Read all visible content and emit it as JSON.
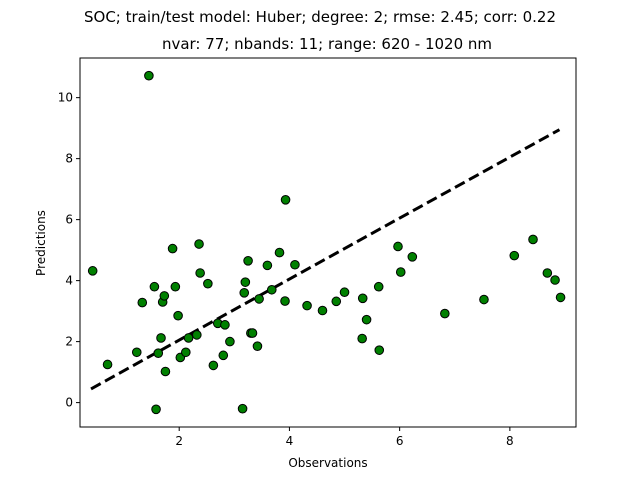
{
  "chart_data": {
    "type": "scatter",
    "title": "SOC; train/test model: Huber; degree: 2; rmse: 2.45; corr: 0.22",
    "subtitle": "nvar: 77; nbands: 11; range: 620 - 1020 nm",
    "xlabel": "Observations",
    "ylabel": "Predictions",
    "xlim": [
      0.2,
      9.2
    ],
    "ylim": [
      -0.8,
      11.3
    ],
    "xticks": [
      2,
      4,
      6,
      8
    ],
    "yticks": [
      0,
      2,
      4,
      6,
      8,
      10
    ],
    "grid": false,
    "legend": "none",
    "marker_color": "#008000",
    "marker_edge": "#000000",
    "fit_line": {
      "x": [
        0.4,
        8.9
      ],
      "y": [
        0.45,
        8.95
      ],
      "style": "dashed",
      "color": "#000000"
    },
    "points": [
      [
        0.43,
        4.32
      ],
      [
        0.7,
        1.25
      ],
      [
        1.23,
        1.65
      ],
      [
        1.33,
        3.28
      ],
      [
        1.45,
        10.72
      ],
      [
        1.55,
        3.8
      ],
      [
        1.58,
        -0.22
      ],
      [
        1.62,
        1.62
      ],
      [
        1.67,
        2.12
      ],
      [
        1.7,
        3.3
      ],
      [
        1.73,
        3.5
      ],
      [
        1.75,
        1.02
      ],
      [
        1.88,
        5.05
      ],
      [
        1.93,
        3.8
      ],
      [
        1.98,
        2.85
      ],
      [
        2.02,
        1.48
      ],
      [
        2.12,
        1.65
      ],
      [
        2.17,
        2.12
      ],
      [
        2.32,
        2.22
      ],
      [
        2.36,
        5.2
      ],
      [
        2.38,
        4.25
      ],
      [
        2.52,
        3.9
      ],
      [
        2.62,
        1.22
      ],
      [
        2.7,
        2.6
      ],
      [
        2.8,
        1.55
      ],
      [
        2.83,
        2.55
      ],
      [
        2.92,
        2.0
      ],
      [
        3.15,
        -0.2
      ],
      [
        3.18,
        3.6
      ],
      [
        3.2,
        3.95
      ],
      [
        3.25,
        4.65
      ],
      [
        3.3,
        2.28
      ],
      [
        3.33,
        2.28
      ],
      [
        3.42,
        1.85
      ],
      [
        3.45,
        3.4
      ],
      [
        3.6,
        4.5
      ],
      [
        3.68,
        3.7
      ],
      [
        3.82,
        4.92
      ],
      [
        3.92,
        3.33
      ],
      [
        3.93,
        6.65
      ],
      [
        4.1,
        4.52
      ],
      [
        4.32,
        3.18
      ],
      [
        4.6,
        3.02
      ],
      [
        4.85,
        3.32
      ],
      [
        5.0,
        3.62
      ],
      [
        5.32,
        2.1
      ],
      [
        5.33,
        3.42
      ],
      [
        5.4,
        2.72
      ],
      [
        5.62,
        3.8
      ],
      [
        5.63,
        1.72
      ],
      [
        5.97,
        5.12
      ],
      [
        6.02,
        4.28
      ],
      [
        6.23,
        4.78
      ],
      [
        6.82,
        2.92
      ],
      [
        7.53,
        3.38
      ],
      [
        8.08,
        4.82
      ],
      [
        8.42,
        5.35
      ],
      [
        8.68,
        4.25
      ],
      [
        8.82,
        4.02
      ],
      [
        8.92,
        3.45
      ]
    ]
  }
}
